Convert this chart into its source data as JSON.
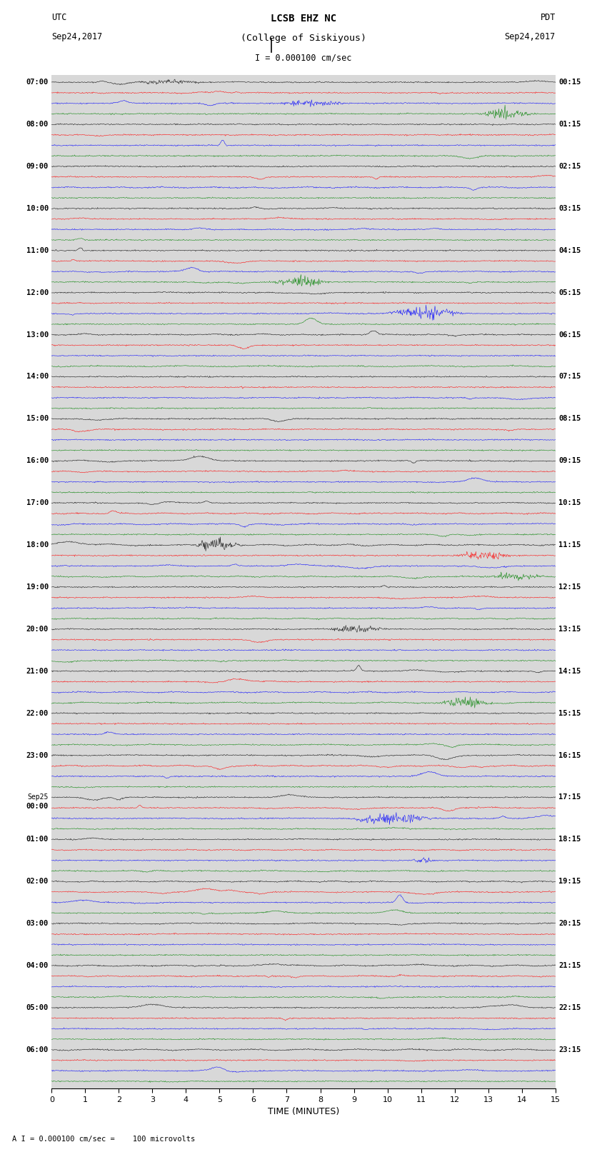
{
  "title_line1": "LCSB EHZ NC",
  "title_line2": "(College of Siskiyous)",
  "scale_text": "I = 0.000100 cm/sec",
  "left_label_top": "UTC",
  "left_label_date": "Sep24,2017",
  "right_label_top": "PDT",
  "right_label_date": "Sep24,2017",
  "bottom_label": "TIME (MINUTES)",
  "footnote": "A I = 0.000100 cm/sec =    100 microvolts",
  "xlabel_ticks": [
    0,
    1,
    2,
    3,
    4,
    5,
    6,
    7,
    8,
    9,
    10,
    11,
    12,
    13,
    14,
    15
  ],
  "colors_cycle": [
    "black",
    "red",
    "blue",
    "green"
  ],
  "n_rows": 96,
  "trace_amplitude": 0.35,
  "fig_width": 8.5,
  "fig_height": 16.13,
  "background_color": "white",
  "plot_bg_color": "#d8d8d8",
  "left_times_utc": [
    "07:00",
    "",
    "",
    "",
    "08:00",
    "",
    "",
    "",
    "09:00",
    "",
    "",
    "",
    "10:00",
    "",
    "",
    "",
    "11:00",
    "",
    "",
    "",
    "12:00",
    "",
    "",
    "",
    "13:00",
    "",
    "",
    "",
    "14:00",
    "",
    "",
    "",
    "15:00",
    "",
    "",
    "",
    "16:00",
    "",
    "",
    "",
    "17:00",
    "",
    "",
    "",
    "18:00",
    "",
    "",
    "",
    "19:00",
    "",
    "",
    "",
    "20:00",
    "",
    "",
    "",
    "21:00",
    "",
    "",
    "",
    "22:00",
    "",
    "",
    "",
    "23:00",
    "",
    "",
    "",
    "Sep25",
    "00:00",
    "",
    "",
    "01:00",
    "",
    "",
    "",
    "02:00",
    "",
    "",
    "",
    "03:00",
    "",
    "",
    "",
    "04:00",
    "",
    "",
    "",
    "05:00",
    "",
    "",
    "",
    "06:00",
    "",
    "",
    ""
  ],
  "right_times_pdt": [
    "00:15",
    "",
    "",
    "",
    "01:15",
    "",
    "",
    "",
    "02:15",
    "",
    "",
    "",
    "03:15",
    "",
    "",
    "",
    "04:15",
    "",
    "",
    "",
    "05:15",
    "",
    "",
    "",
    "06:15",
    "",
    "",
    "",
    "07:15",
    "",
    "",
    "",
    "08:15",
    "",
    "",
    "",
    "09:15",
    "",
    "",
    "",
    "10:15",
    "",
    "",
    "",
    "11:15",
    "",
    "",
    "",
    "12:15",
    "",
    "",
    "",
    "13:15",
    "",
    "",
    "",
    "14:15",
    "",
    "",
    "",
    "15:15",
    "",
    "",
    "",
    "16:15",
    "",
    "",
    "",
    "17:15",
    "",
    "",
    "",
    "18:15",
    "",
    "",
    "",
    "19:15",
    "",
    "",
    "",
    "20:15",
    "",
    "",
    "",
    "21:15",
    "",
    "",
    "",
    "22:15",
    "",
    "",
    "",
    "23:15",
    "",
    "",
    ""
  ],
  "seed": 42
}
